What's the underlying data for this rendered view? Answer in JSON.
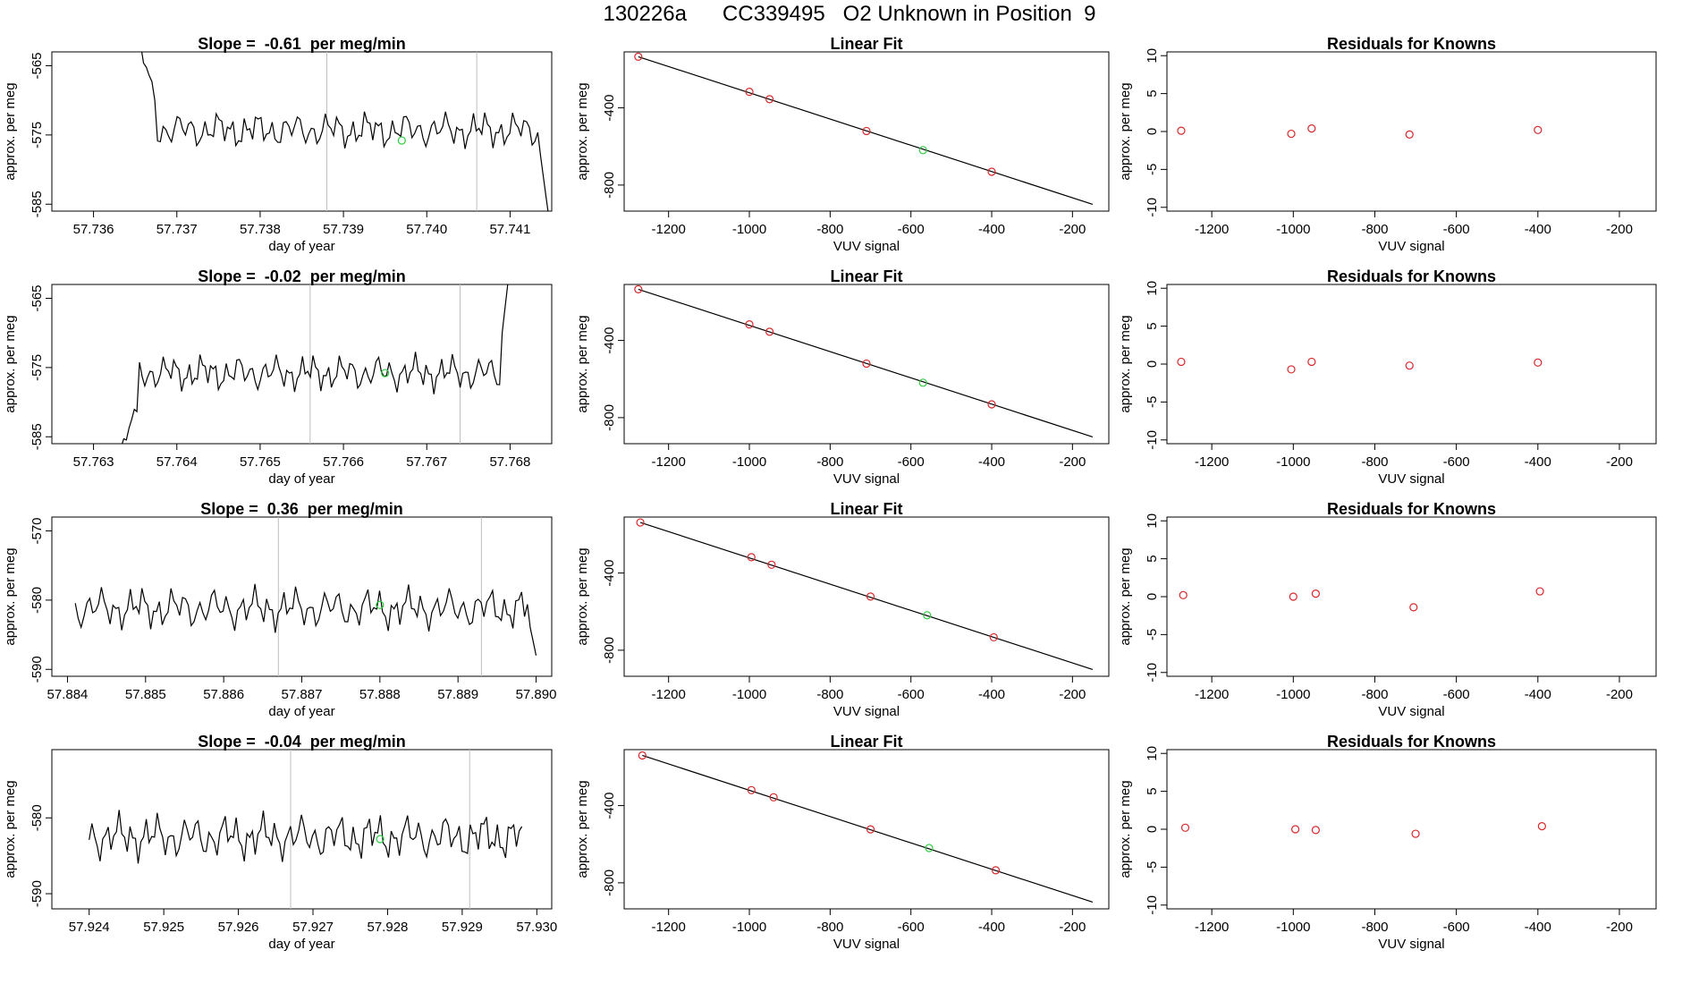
{
  "page": {
    "title": "130226a      CC339495   O2 Unknown in Position  9"
  },
  "colors": {
    "background": "#ffffff",
    "axis": "#000000",
    "trace": "#000000",
    "known_point": "#d62728",
    "unknown_point": "#2ecc40",
    "guide_line": "#bebebe"
  },
  "chart_data": [
    {
      "type": "line",
      "row": 1,
      "panel": "timeseries",
      "title": "Slope =  -0.61  per meg/min",
      "xlabel": "day of year",
      "ylabel": "approx. per meg",
      "xlim": [
        57.7355,
        57.7415
      ],
      "ylim": [
        -586,
        -563
      ],
      "xticks": [
        57.736,
        57.737,
        57.738,
        57.739,
        57.74,
        57.741
      ],
      "xtick_labels": [
        "57.736",
        "57.737",
        "57.738",
        "57.739",
        "57.740",
        "57.741"
      ],
      "yticks": [
        -565,
        -575,
        -585
      ],
      "ytick_labels": [
        "-565",
        "-575",
        "-585"
      ],
      "vlines": [
        57.7388,
        57.7406
      ],
      "unknown_point": {
        "x": 57.7397,
        "y": -575.8
      },
      "trace": {
        "x_start": 57.7365,
        "x_end": 57.7415,
        "n": 150,
        "center": -574.3,
        "amplitude": 2.6,
        "lead_in": {
          "from": -560,
          "to": -571,
          "n": 8
        },
        "lead_out": {
          "from": -578,
          "to": -590,
          "n": 5
        }
      }
    },
    {
      "type": "scatter",
      "row": 1,
      "panel": "linear-fit",
      "title": "Linear Fit",
      "xlabel": "VUV signal",
      "ylabel": "approx. per meg",
      "xlim": [
        -1310,
        -110
      ],
      "ylim": [
        -935,
        -110
      ],
      "xticks": [
        -1200,
        -1000,
        -800,
        -600,
        -400,
        -200
      ],
      "xtick_labels": [
        "-1200",
        "-1000",
        "-800",
        "-600",
        "-400",
        "-200"
      ],
      "yticks": [
        -400,
        -800
      ],
      "ytick_labels": [
        "-400",
        "-800"
      ],
      "fit_line": {
        "x": [
          -1275,
          -150
        ],
        "y": [
          -135,
          -900
        ]
      },
      "known_points": {
        "x": [
          -1275,
          -1000,
          -950,
          -710,
          -400
        ],
        "y": [
          -135,
          -317,
          -355,
          -520,
          -731
        ]
      },
      "unknown_points": {
        "x": [
          -570
        ],
        "y": [
          -619
        ]
      }
    },
    {
      "type": "scatter",
      "row": 1,
      "panel": "residuals",
      "title": "Residuals for Knowns",
      "xlabel": "VUV signal",
      "ylabel": "approx. per meg",
      "xlim": [
        -1310,
        -110
      ],
      "ylim": [
        -10.5,
        10.5
      ],
      "xticks": [
        -1200,
        -1000,
        -800,
        -600,
        -400,
        -200
      ],
      "xtick_labels": [
        "-1200",
        "-1000",
        "-800",
        "-600",
        "-400",
        "-200"
      ],
      "yticks": [
        10,
        5,
        0,
        -5,
        -10
      ],
      "ytick_labels": [
        "10",
        "5",
        "0",
        "-5",
        "-10"
      ],
      "known_points": {
        "x": [
          -1275,
          -1005,
          -955,
          -715,
          -400
        ],
        "y": [
          0.1,
          -0.3,
          0.4,
          -0.4,
          0.2
        ]
      }
    },
    {
      "type": "line",
      "row": 2,
      "panel": "timeseries",
      "title": "Slope =  -0.02  per meg/min",
      "xlabel": "day of year",
      "ylabel": "approx. per meg",
      "xlim": [
        57.7625,
        57.7685
      ],
      "ylim": [
        -586,
        -563
      ],
      "xticks": [
        57.763,
        57.764,
        57.765,
        57.766,
        57.767,
        57.768
      ],
      "xtick_labels": [
        "57.763",
        "57.764",
        "57.765",
        "57.766",
        "57.767",
        "57.768"
      ],
      "yticks": [
        -565,
        -575,
        -585
      ],
      "ytick_labels": [
        "-565",
        "-575",
        "-585"
      ],
      "vlines": [
        57.7656,
        57.7674
      ],
      "unknown_point": {
        "x": 57.7665,
        "y": -575.8
      },
      "trace": {
        "x_start": 57.7633,
        "x_end": 57.768,
        "n": 150,
        "center": -575.8,
        "amplitude": 2.6,
        "lead_in": {
          "from": -588,
          "to": -580,
          "n": 8
        },
        "lead_out": {
          "from": -570,
          "to": -560,
          "n": 4
        }
      }
    },
    {
      "type": "scatter",
      "row": 2,
      "panel": "linear-fit",
      "title": "Linear Fit",
      "xlabel": "VUV signal",
      "ylabel": "approx. per meg",
      "xlim": [
        -1310,
        -110
      ],
      "ylim": [
        -935,
        -110
      ],
      "xticks": [
        -1200,
        -1000,
        -800,
        -600,
        -400,
        -200
      ],
      "xtick_labels": [
        "-1200",
        "-1000",
        "-800",
        "-600",
        "-400",
        "-200"
      ],
      "yticks": [
        -400,
        -800
      ],
      "ytick_labels": [
        "-400",
        "-800"
      ],
      "fit_line": {
        "x": [
          -1275,
          -150
        ],
        "y": [
          -135,
          -900
        ]
      },
      "known_points": {
        "x": [
          -1275,
          -1000,
          -950,
          -710,
          -400
        ],
        "y": [
          -135,
          -317,
          -355,
          -520,
          -731
        ]
      },
      "unknown_points": {
        "x": [
          -570
        ],
        "y": [
          -619
        ]
      }
    },
    {
      "type": "scatter",
      "row": 2,
      "panel": "residuals",
      "title": "Residuals for Knowns",
      "xlabel": "VUV signal",
      "ylabel": "approx. per meg",
      "xlim": [
        -1310,
        -110
      ],
      "ylim": [
        -10.5,
        10.5
      ],
      "xticks": [
        -1200,
        -1000,
        -800,
        -600,
        -400,
        -200
      ],
      "xtick_labels": [
        "-1200",
        "-1000",
        "-800",
        "-600",
        "-400",
        "-200"
      ],
      "yticks": [
        10,
        5,
        0,
        -5,
        -10
      ],
      "ytick_labels": [
        "10",
        "5",
        "0",
        "-5",
        "-10"
      ],
      "known_points": {
        "x": [
          -1275,
          -1005,
          -955,
          -715,
          -400
        ],
        "y": [
          0.3,
          -0.7,
          0.3,
          -0.2,
          0.2
        ]
      }
    },
    {
      "type": "line",
      "row": 3,
      "panel": "timeseries",
      "title": "Slope =  0.36  per meg/min",
      "xlabel": "day of year",
      "ylabel": "approx. per meg",
      "xlim": [
        57.8838,
        57.8902
      ],
      "ylim": [
        -591,
        -568
      ],
      "xticks": [
        57.884,
        57.885,
        57.886,
        57.887,
        57.888,
        57.889,
        57.89
      ],
      "xtick_labels": [
        "57.884",
        "57.885",
        "57.886",
        "57.887",
        "57.888",
        "57.889",
        "57.890"
      ],
      "yticks": [
        -570,
        -580,
        -590
      ],
      "ytick_labels": [
        "-570",
        "-580",
        "-590"
      ],
      "vlines": [
        57.8867,
        57.8893
      ],
      "unknown_point": {
        "x": 57.888,
        "y": -580.7
      },
      "trace": {
        "x_start": 57.8841,
        "x_end": 57.89,
        "n": 160,
        "center": -581.2,
        "amplitude": 3.0,
        "lead_in": null,
        "lead_out": {
          "from": -584,
          "to": -588,
          "n": 3
        }
      }
    },
    {
      "type": "scatter",
      "row": 3,
      "panel": "linear-fit",
      "title": "Linear Fit",
      "xlabel": "VUV signal",
      "ylabel": "approx. per meg",
      "xlim": [
        -1310,
        -110
      ],
      "ylim": [
        -935,
        -110
      ],
      "xticks": [
        -1200,
        -1000,
        -800,
        -600,
        -400,
        -200
      ],
      "xtick_labels": [
        "-1200",
        "-1000",
        "-800",
        "-600",
        "-400",
        "-200"
      ],
      "yticks": [
        -400,
        -800
      ],
      "ytick_labels": [
        "-400",
        "-800"
      ],
      "fit_line": {
        "x": [
          -1270,
          -150
        ],
        "y": [
          -138,
          -900
        ]
      },
      "known_points": {
        "x": [
          -1270,
          -995,
          -945,
          -700,
          -395
        ],
        "y": [
          -138,
          -318,
          -357,
          -522,
          -733
        ]
      },
      "unknown_points": {
        "x": [
          -560
        ],
        "y": [
          -619
        ]
      }
    },
    {
      "type": "scatter",
      "row": 3,
      "panel": "residuals",
      "title": "Residuals for Knowns",
      "xlabel": "VUV signal",
      "ylabel": "approx. per meg",
      "xlim": [
        -1310,
        -110
      ],
      "ylim": [
        -10.5,
        10.5
      ],
      "xticks": [
        -1200,
        -1000,
        -800,
        -600,
        -400,
        -200
      ],
      "xtick_labels": [
        "-1200",
        "-1000",
        "-800",
        "-600",
        "-400",
        "-200"
      ],
      "yticks": [
        10,
        5,
        0,
        -5,
        -10
      ],
      "ytick_labels": [
        "10",
        "5",
        "0",
        "-5",
        "-10"
      ],
      "known_points": {
        "x": [
          -1270,
          -1000,
          -945,
          -705,
          -395
        ],
        "y": [
          0.2,
          0.0,
          0.4,
          -1.4,
          0.7
        ]
      }
    },
    {
      "type": "line",
      "row": 4,
      "panel": "timeseries",
      "title": "Slope =  -0.04  per meg/min",
      "xlabel": "day of year",
      "ylabel": "approx. per meg",
      "xlim": [
        57.9235,
        57.9302
      ],
      "ylim": [
        -592,
        -571
      ],
      "xticks": [
        57.924,
        57.925,
        57.926,
        57.927,
        57.928,
        57.929,
        57.93
      ],
      "xtick_labels": [
        "57.924",
        "57.925",
        "57.926",
        "57.927",
        "57.928",
        "57.929",
        "57.930"
      ],
      "yticks": [
        -580,
        -590
      ],
      "ytick_labels": [
        "-580",
        "-590"
      ],
      "vlines": [
        57.9267,
        57.9291
      ],
      "unknown_point": {
        "x": 57.9279,
        "y": -582.8
      },
      "trace": {
        "x_start": 57.924,
        "x_end": 57.9298,
        "n": 160,
        "center": -582.5,
        "amplitude": 3.0,
        "lead_in": null,
        "lead_out": null
      }
    },
    {
      "type": "scatter",
      "row": 4,
      "panel": "linear-fit",
      "title": "Linear Fit",
      "xlabel": "VUV signal",
      "ylabel": "approx. per meg",
      "xlim": [
        -1310,
        -110
      ],
      "ylim": [
        -935,
        -110
      ],
      "xticks": [
        -1200,
        -1000,
        -800,
        -600,
        -400,
        -200
      ],
      "xtick_labels": [
        "-1200",
        "-1000",
        "-800",
        "-600",
        "-400",
        "-200"
      ],
      "yticks": [
        -400,
        -800
      ],
      "ytick_labels": [
        "-400",
        "-800"
      ],
      "fit_line": {
        "x": [
          -1265,
          -150
        ],
        "y": [
          -140,
          -900
        ]
      },
      "known_points": {
        "x": [
          -1265,
          -995,
          -940,
          -700,
          -390
        ],
        "y": [
          -140,
          -320,
          -357,
          -523,
          -735
        ]
      },
      "unknown_points": {
        "x": [
          -555
        ],
        "y": [
          -620
        ]
      }
    },
    {
      "type": "scatter",
      "row": 4,
      "panel": "residuals",
      "title": "Residuals for Knowns",
      "xlabel": "VUV signal",
      "ylabel": "approx. per meg",
      "xlim": [
        -1310,
        -110
      ],
      "ylim": [
        -10.5,
        10.5
      ],
      "xticks": [
        -1200,
        -1000,
        -800,
        -600,
        -400,
        -200
      ],
      "xtick_labels": [
        "-1200",
        "-1000",
        "-800",
        "-600",
        "-400",
        "-200"
      ],
      "yticks": [
        10,
        5,
        0,
        -5,
        -10
      ],
      "ytick_labels": [
        "10",
        "5",
        "0",
        "-5",
        "-10"
      ],
      "known_points": {
        "x": [
          -1265,
          -995,
          -945,
          -700,
          -390
        ],
        "y": [
          0.2,
          0.0,
          -0.1,
          -0.6,
          0.4
        ]
      }
    }
  ]
}
